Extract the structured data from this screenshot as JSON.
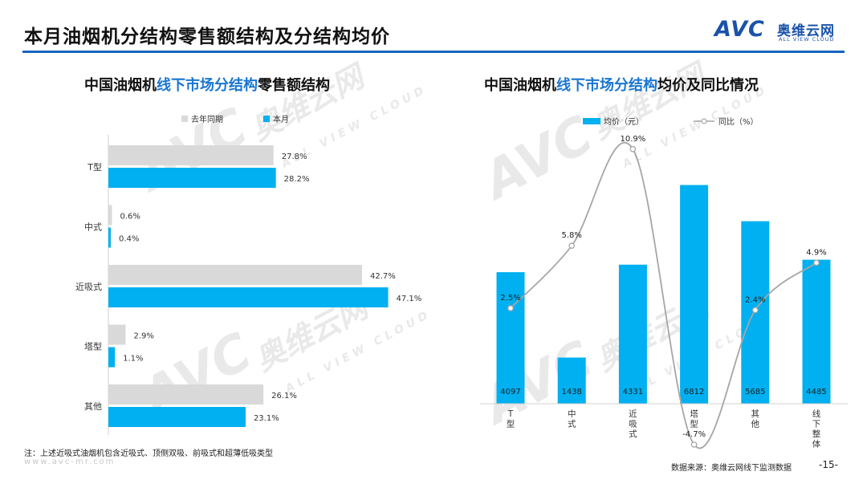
{
  "header": {
    "title": "本月油烟机分结构零售额结构及分结构均价",
    "logo": {
      "mark": "AVC",
      "name_cn": "奥维云网",
      "name_en": "ALL VIEW CLOUD"
    }
  },
  "watermark": {
    "mark": "AVC",
    "name_cn": "奥维云网",
    "name_en": "ALL VIEW CLOUD"
  },
  "chart_data": [
    {
      "type": "bar",
      "orientation": "horizontal",
      "title_parts": [
        "中国油烟机",
        "线下市场分结构",
        "零售额结构"
      ],
      "categories": [
        "T型",
        "中式",
        "近吸式",
        "塔型",
        "其他"
      ],
      "series": [
        {
          "name": "去年同期",
          "values": [
            27.8,
            0.6,
            42.7,
            2.9,
            26.1
          ],
          "color": "#d9d9d9"
        },
        {
          "name": "本月",
          "values": [
            28.2,
            0.4,
            47.1,
            1.1,
            23.1
          ],
          "color": "#00b0f0"
        }
      ],
      "value_suffix": "%",
      "legend_position": "top",
      "grid": false
    },
    {
      "type": "bar+line",
      "title_parts": [
        "中国油烟机",
        "线下市场分结构",
        "均价及同比情况"
      ],
      "categories": [
        "T型",
        "中式",
        "近吸式",
        "塔型",
        "其他",
        "线下整体"
      ],
      "bar_series": {
        "name": "均价（元）",
        "values": [
          4097,
          1438,
          4331,
          6812,
          5685,
          4485
        ],
        "color": "#00b0f0"
      },
      "line_series": {
        "name": "同比（%）",
        "values": [
          2.5,
          5.8,
          10.9,
          -4.7,
          2.4,
          4.9
        ],
        "labels": [
          "2.5%",
          "5.8%",
          "10.9%",
          "-4.7%",
          "2.4%",
          "4.9%"
        ],
        "color": "#a6a6a6"
      },
      "legend_position": "top",
      "grid": false
    }
  ],
  "footnote": "注：上述近吸式油烟机包含近吸式、顶侧双吸、前吸式和超薄低吸类型",
  "url": "www.avc-mr.com",
  "source": "数据来源：奥维云网线下监测数据",
  "page_number": "-15-"
}
